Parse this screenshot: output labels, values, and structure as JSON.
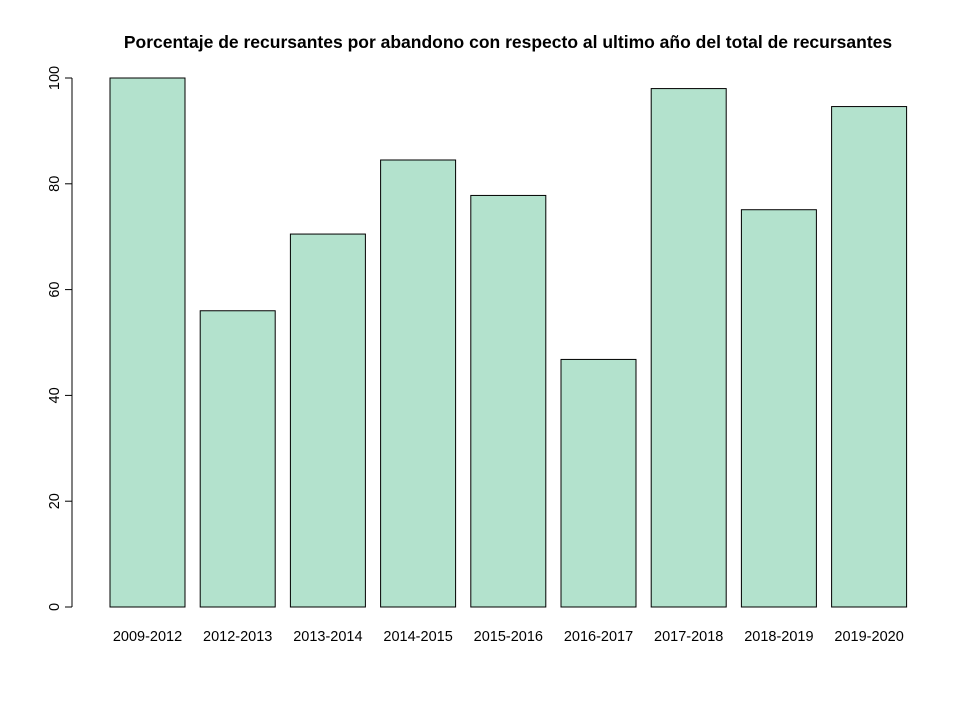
{
  "chart_data": {
    "type": "bar",
    "title": "Porcentaje de recursantes por abandono con respecto al ultimo año del total de recursantes",
    "xlabel": "",
    "ylabel": "",
    "categories": [
      "2009-2012",
      "2012-2013",
      "2013-2014",
      "2014-2015",
      "2015-2016",
      "2016-2017",
      "2017-2018",
      "2018-2019",
      "2019-2020"
    ],
    "values": [
      100,
      56,
      70.5,
      84.5,
      77.8,
      46.8,
      98,
      75.1,
      94.6
    ],
    "ylim": [
      0,
      100
    ],
    "yticks": [
      0,
      20,
      40,
      60,
      80,
      100
    ],
    "ytick_labels": [
      "0",
      "20",
      "40",
      "60",
      "80",
      "100"
    ],
    "grid": false,
    "legend": "none",
    "bar_color": "#b3e2cd",
    "bar_border_color": "#000000"
  }
}
